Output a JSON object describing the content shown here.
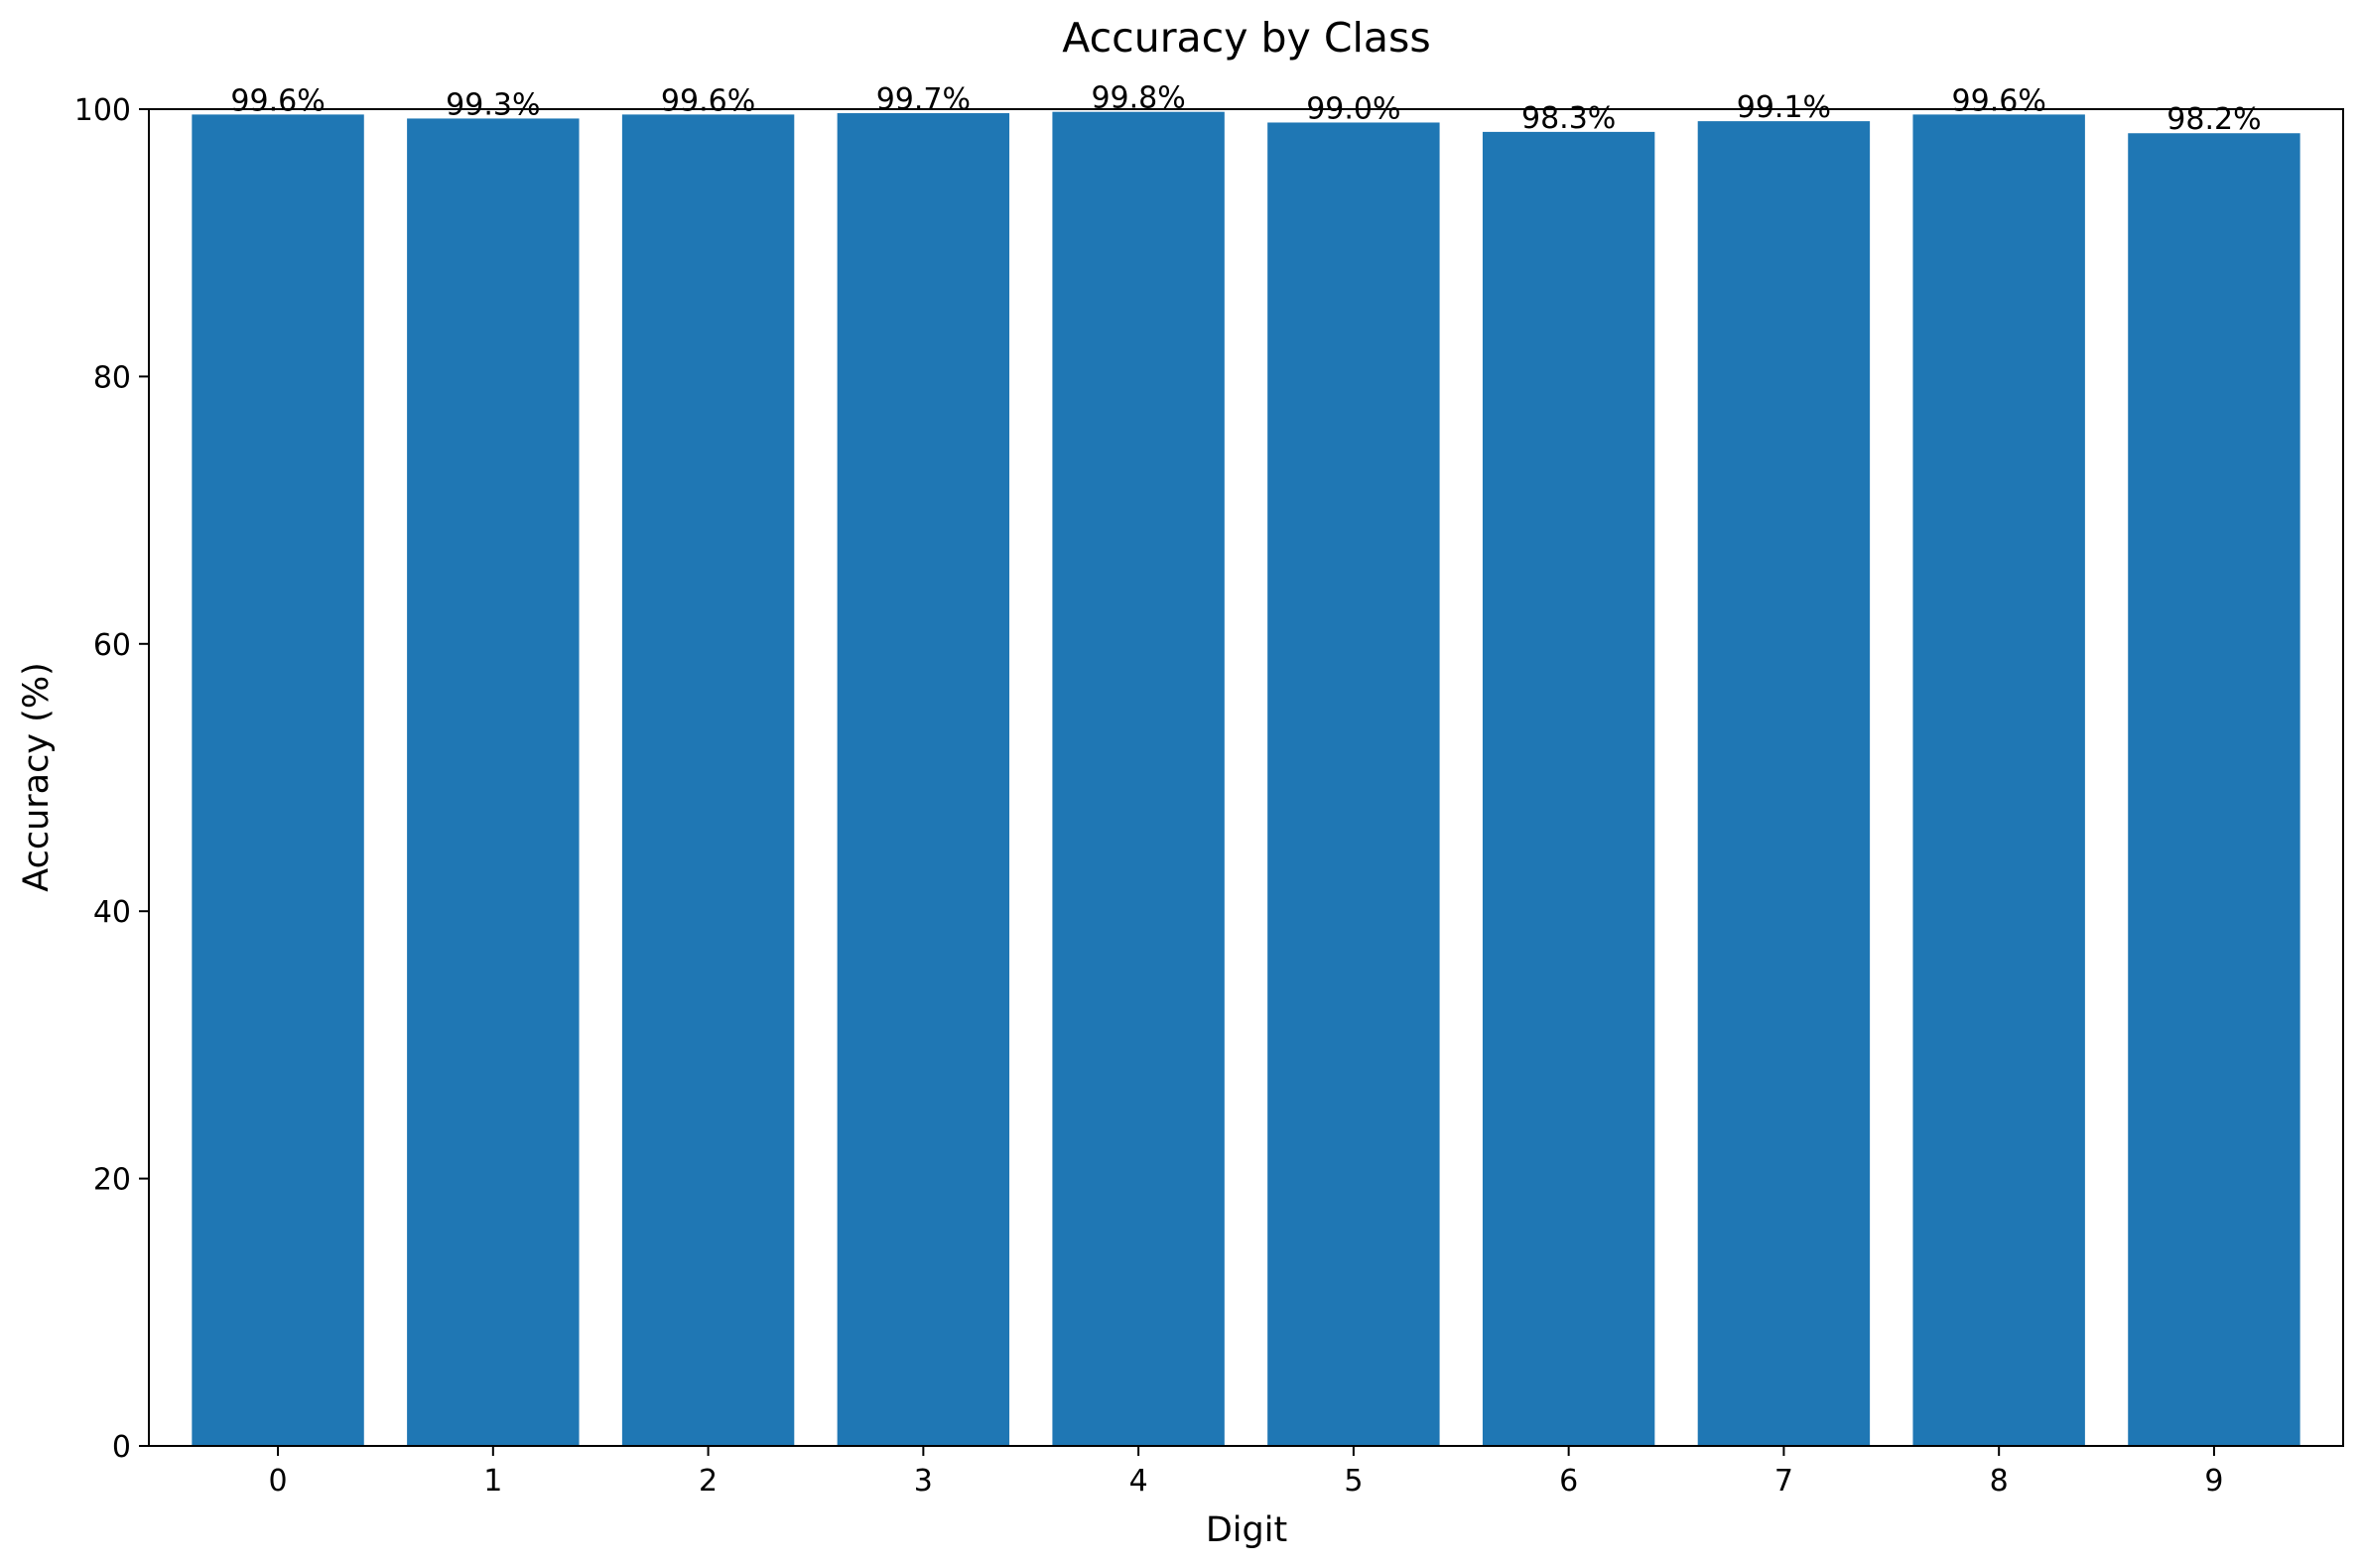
{
  "chart_data": {
    "type": "bar",
    "title": "Accuracy by Class",
    "xlabel": "Digit",
    "ylabel": "Accuracy (%)",
    "categories": [
      "0",
      "1",
      "2",
      "3",
      "4",
      "5",
      "6",
      "7",
      "8",
      "9"
    ],
    "values": [
      99.6,
      99.3,
      99.6,
      99.7,
      99.8,
      99.0,
      98.3,
      99.1,
      99.6,
      98.2
    ],
    "value_labels": [
      "99.6%",
      "99.3%",
      "99.6%",
      "99.7%",
      "99.8%",
      "99.0%",
      "98.3%",
      "99.1%",
      "99.6%",
      "98.2%"
    ],
    "ylim": [
      0,
      100
    ],
    "yticks": [
      0,
      20,
      40,
      60,
      80,
      100
    ],
    "ytick_labels": [
      "0",
      "20",
      "40",
      "60",
      "80",
      "100"
    ],
    "bar_color": "#1f77b4",
    "grid": false,
    "legend": "none"
  }
}
